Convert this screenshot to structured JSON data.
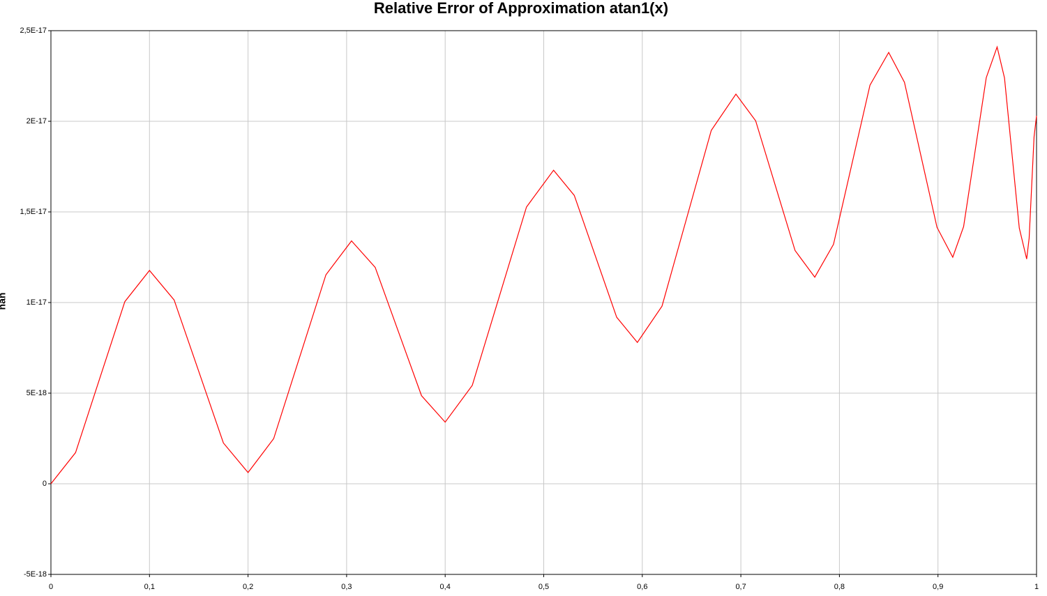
{
  "chart_data": {
    "type": "line",
    "title": "Relative Error of Approximation atan1(x)",
    "y_label": "nan",
    "x": [
      0,
      0.025,
      0.05,
      0.075,
      0.1,
      0.125,
      0.15,
      0.175,
      0.2,
      0.226,
      0.2525,
      0.279,
      0.305,
      0.329,
      0.3525,
      0.376,
      0.4,
      0.4275,
      0.455,
      0.4825,
      0.51,
      0.531,
      0.5525,
      0.574,
      0.595,
      0.62,
      0.645,
      0.67,
      0.695,
      0.715,
      0.735,
      0.755,
      0.775,
      0.794,
      0.8125,
      0.831,
      0.85,
      0.866,
      0.8825,
      0.899,
      0.915,
      0.926,
      0.9375,
      0.949,
      0.96,
      0.9675,
      0.975,
      0.9825,
      0.99,
      0.9925,
      0.995,
      0.9975,
      1
    ],
    "series": [
      {
        "name": "atan1",
        "color": "#ff0000",
        "values": [
          0,
          1.72e-18,
          5.89e-18,
          1.005e-17,
          1.177e-17,
          1.014e-17,
          6.2e-18,
          2.25e-18,
          6.2e-19,
          2.49e-18,
          7.01e-18,
          1.153e-17,
          1.34e-17,
          1.194e-17,
          8.4e-18,
          4.86e-18,
          3.4e-18,
          5.43e-18,
          1.035e-17,
          1.527e-17,
          1.73e-17,
          1.591e-17,
          1.255e-17,
          9.19e-18,
          7.8e-18,
          9.8e-18,
          1.465e-17,
          1.95e-17,
          2.15e-17,
          2.003e-17,
          1.645e-17,
          1.287e-17,
          1.14e-17,
          1.321e-17,
          1.76e-17,
          2.199e-17,
          2.38e-17,
          2.215e-17,
          1.815e-17,
          1.415e-17,
          1.25e-17,
          1.419e-17,
          1.83e-17,
          2.241e-17,
          2.41e-17,
          2.239e-17,
          1.825e-17,
          1.411e-17,
          1.24e-17,
          1.355e-17,
          1.635e-17,
          1.915e-17,
          2.03e-17
        ]
      }
    ],
    "xlim": [
      0,
      1
    ],
    "xticks": [
      0,
      {
        "value": 0.1,
        "label": "0,1"
      },
      {
        "value": 0.2,
        "label": "0,2"
      },
      {
        "value": 0.3,
        "label": "0,3"
      },
      {
        "value": 0.4,
        "label": "0,4"
      },
      {
        "value": 0.5,
        "label": "0,5"
      },
      {
        "value": 0.6,
        "label": "0,6"
      },
      {
        "value": 0.7,
        "label": "0,7"
      },
      {
        "value": 0.8,
        "label": "0,8"
      },
      {
        "value": 0.9,
        "label": "0,9"
      },
      1
    ],
    "ylim": [
      -5e-18,
      2.5e-17
    ],
    "yticks": [
      {
        "value": -5e-18,
        "label": "-5E-18"
      },
      0,
      {
        "value": 5e-18,
        "label": "5E-18"
      },
      {
        "value": 1e-17,
        "label": "1E-17"
      },
      {
        "value": 1.5e-17,
        "label": "1,5E-17"
      },
      {
        "value": 2e-17,
        "label": "2E-17"
      },
      {
        "value": 2.5e-17,
        "label": "2,5E-17"
      }
    ],
    "grid": true
  }
}
